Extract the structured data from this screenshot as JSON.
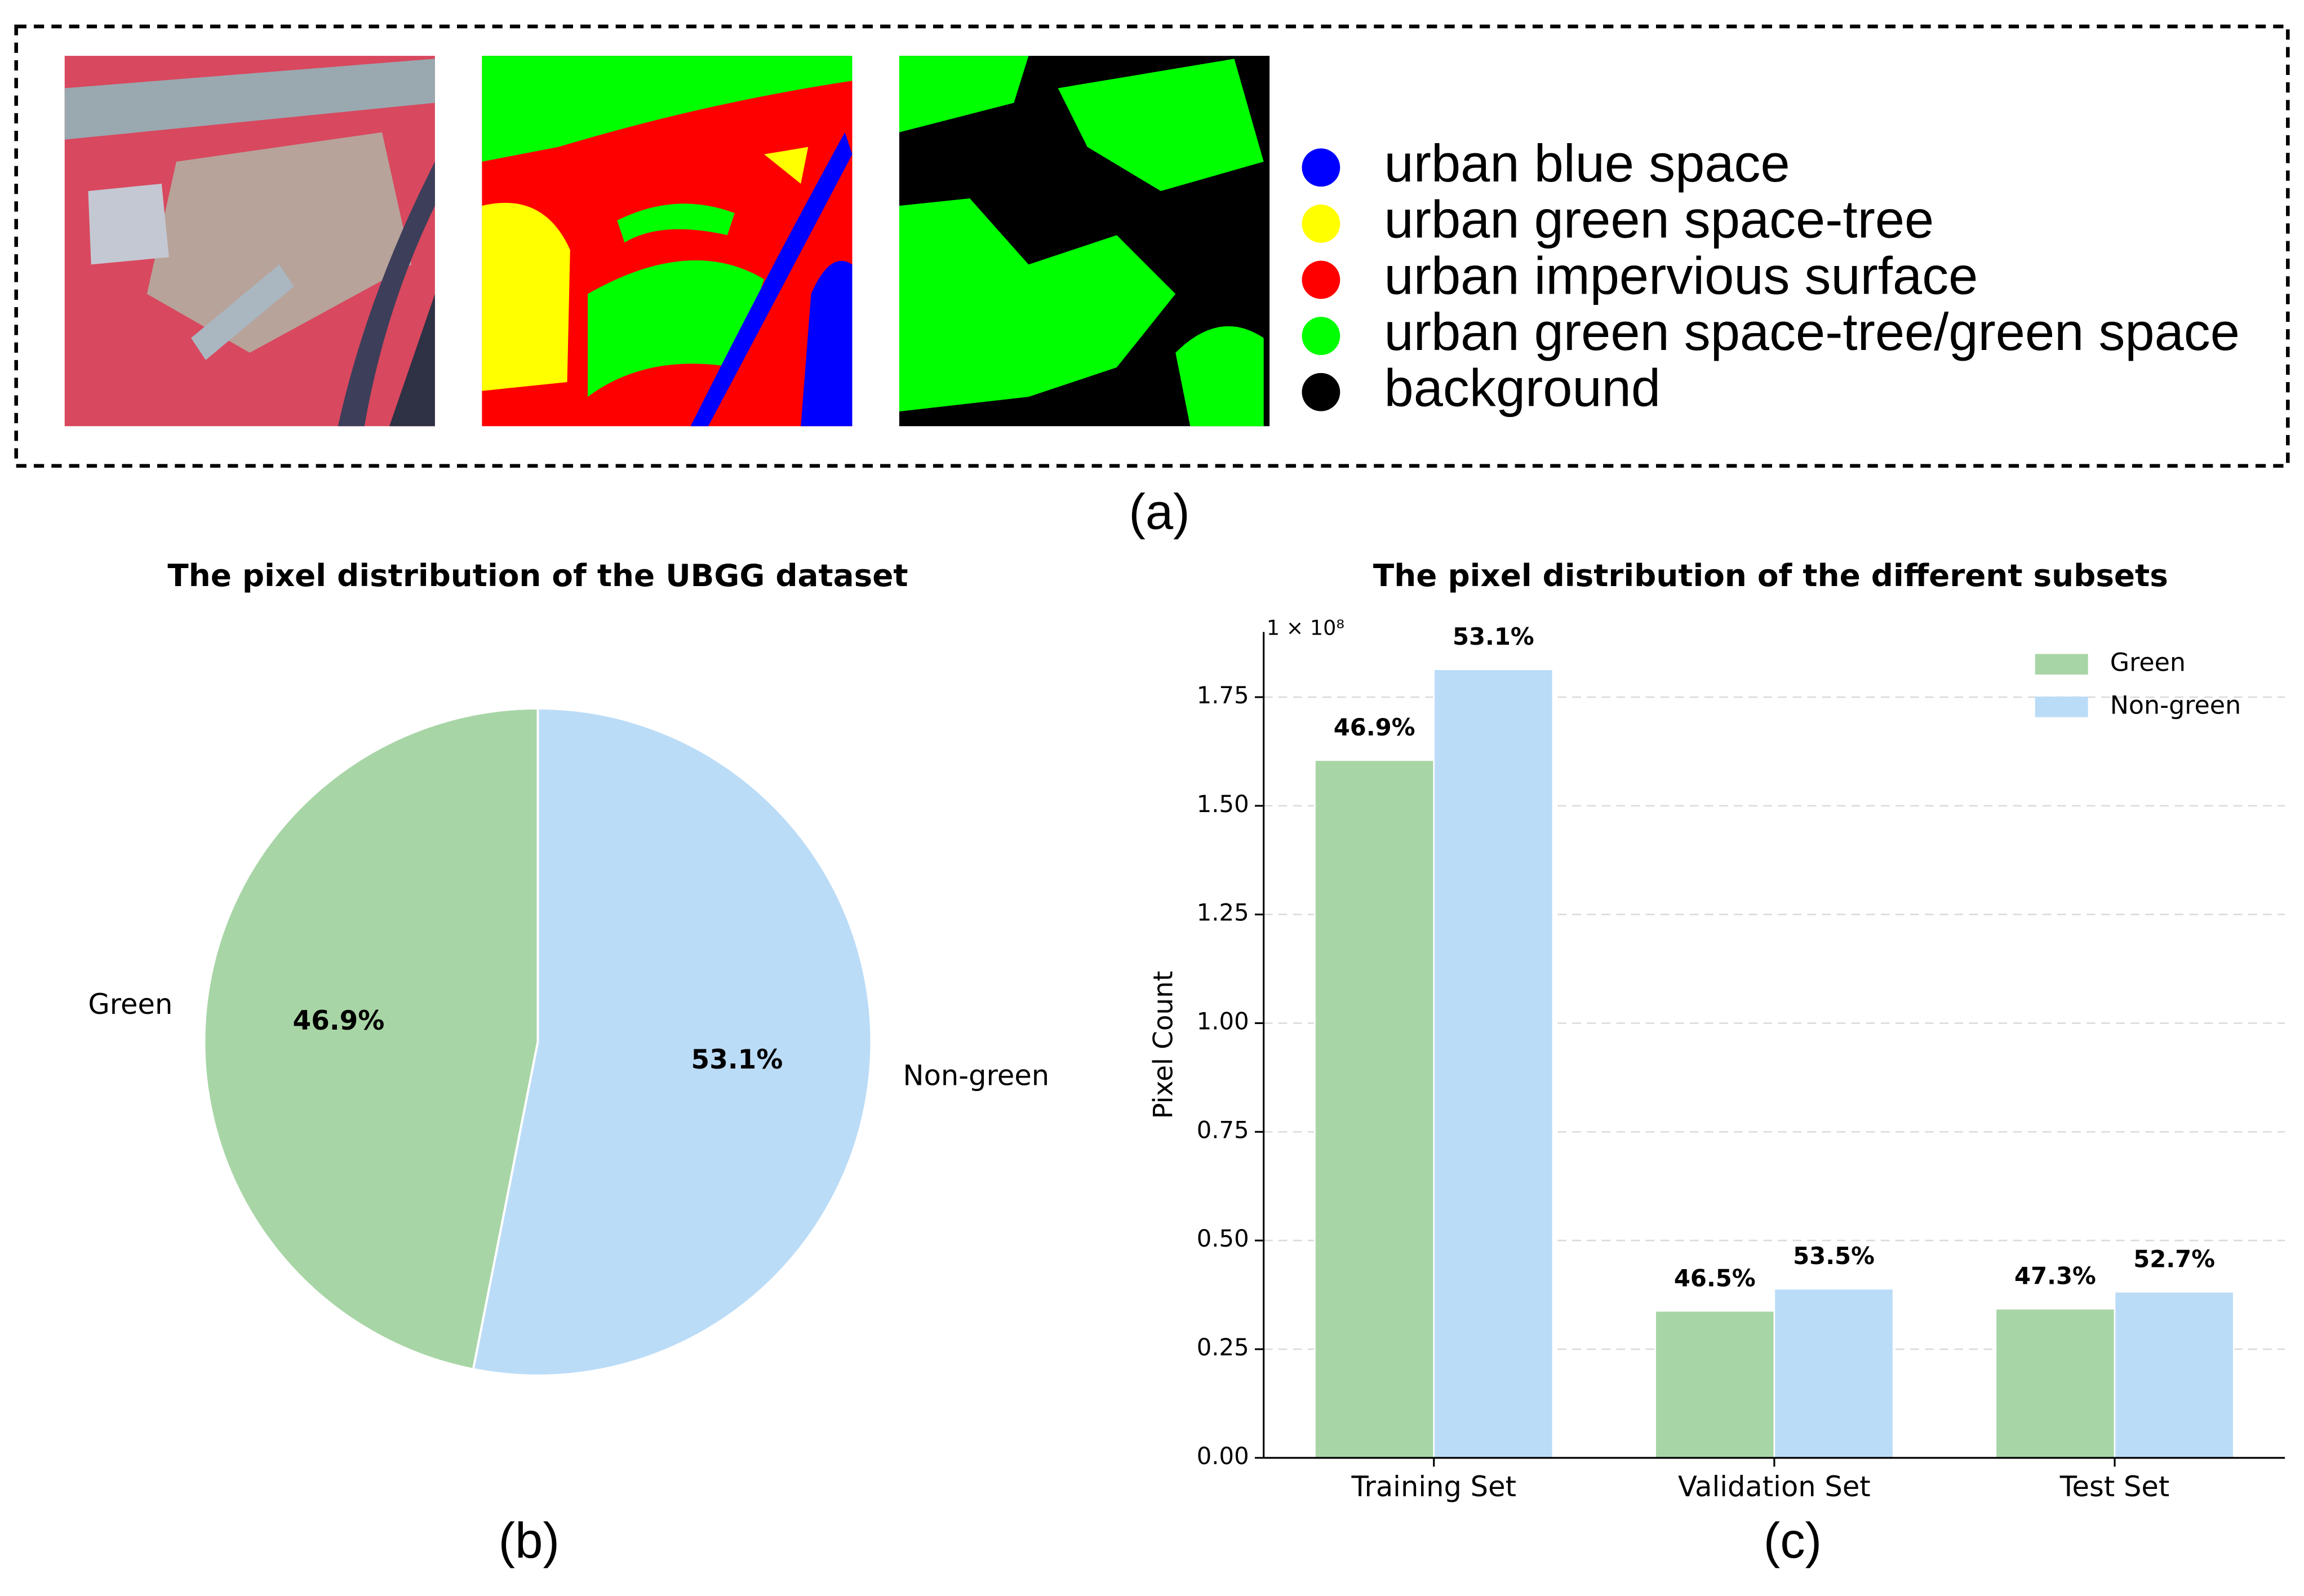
{
  "panel_a": {
    "legend": [
      {
        "label": "urban blue space",
        "color": "#0000ff"
      },
      {
        "label": "urban green space-tree",
        "color": "#ffff00"
      },
      {
        "label": "urban impervious surface",
        "color": "#ff0000"
      },
      {
        "label": "urban green space-tree/green space",
        "color": "#00ff00"
      },
      {
        "label": "background",
        "color": "#000000"
      }
    ],
    "caption": "(a)"
  },
  "chart_data": [
    {
      "type": "pie",
      "title": "The pixel distribution of the UBGG dataset",
      "categories": [
        "Green",
        "Non-green"
      ],
      "values": [
        46.9,
        53.1
      ],
      "value_labels": [
        "46.9%",
        "53.1%"
      ],
      "colors": [
        "#a8d5a6",
        "#bbdcf7"
      ],
      "start_angle": 90,
      "counterclock": true,
      "caption": "(b)"
    },
    {
      "type": "bar",
      "title": "The pixel distribution of the different subsets",
      "categories": [
        "Training Set",
        "Validation Set",
        "Test Set"
      ],
      "series": [
        {
          "name": "Green",
          "color": "#a8d5a6",
          "values": [
            1.605,
            0.338,
            0.343
          ],
          "value_labels": [
            "46.9%",
            "46.5%",
            "47.3%"
          ]
        },
        {
          "name": "Non-green",
          "color": "#bbdcf7",
          "values": [
            1.814,
            0.389,
            0.382
          ],
          "value_labels": [
            "53.1%",
            "53.5%",
            "52.7%"
          ]
        }
      ],
      "ylabel": "Pixel Count",
      "y_offset_label": "1 × 10⁸",
      "ylim": [
        0,
        1.9
      ],
      "yticks": [
        {
          "value": 0,
          "label": "0.00"
        },
        0.25,
        {
          "value": 0.5,
          "label": "0.50"
        },
        0.75,
        {
          "value": 1,
          "label": "1.00"
        },
        1.25,
        {
          "value": 1.5,
          "label": "1.50"
        },
        1.75
      ],
      "grid": true,
      "legend": "upper right",
      "caption": "(c)"
    }
  ]
}
